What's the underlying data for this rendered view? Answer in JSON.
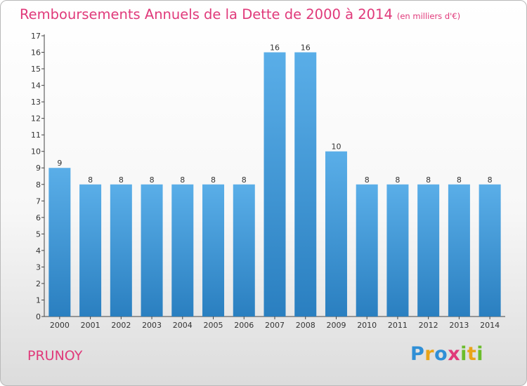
{
  "title": "Remboursements Annuels de la Dette de 2000 à 2014",
  "subtitle": "(en milliers d'€)",
  "place_name": "PRUNOY",
  "logo_text": "Proxiti",
  "colors": {
    "title": "#e0397a",
    "bar_light": "#5aaee8",
    "bar_dark": "#2a7fc0"
  },
  "chart_data": {
    "type": "bar",
    "title": "Remboursements Annuels de la Dette de 2000 à 2014",
    "subtitle": "(en milliers d'€)",
    "categories": [
      "2000",
      "2001",
      "2002",
      "2003",
      "2004",
      "2005",
      "2006",
      "2007",
      "2008",
      "2009",
      "2010",
      "2011",
      "2012",
      "2013",
      "2014"
    ],
    "values": [
      9,
      8,
      8,
      8,
      8,
      8,
      8,
      16,
      16,
      10,
      8,
      8,
      8,
      8,
      8
    ],
    "data_labels": [
      "9",
      "8",
      "8",
      "8",
      "8",
      "8",
      "8",
      "16",
      "16",
      "10",
      "8",
      "8",
      "8",
      "8",
      "8"
    ],
    "ylim": [
      0,
      17
    ],
    "yticks": [
      "0",
      "1",
      "2",
      "3",
      "4",
      "5",
      "6",
      "7",
      "8",
      "9",
      "10",
      "11",
      "12",
      "13",
      "14",
      "15",
      "16",
      "17"
    ],
    "grid": false,
    "legend": "none"
  }
}
